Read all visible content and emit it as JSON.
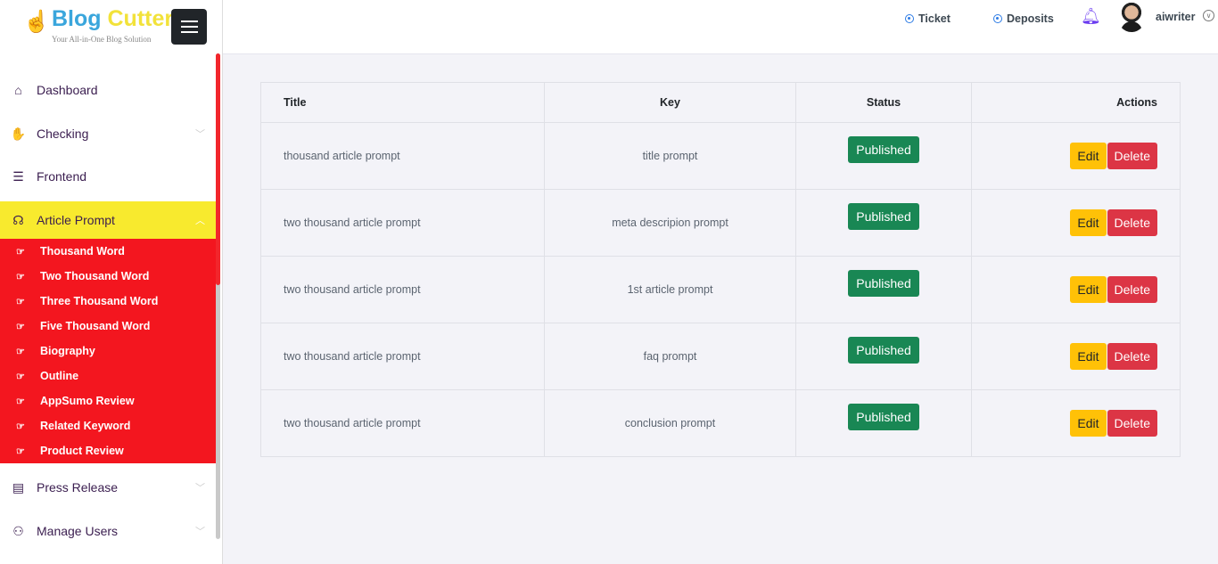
{
  "brand": {
    "name_blue": "Blog",
    "name_yellow": "Cutter",
    "tagline": "Your All-in-One Blog Solution"
  },
  "sidebar": {
    "items": [
      {
        "label": "Dashboard",
        "icon": "home-icon"
      },
      {
        "label": "Checking",
        "icon": "hand-icon",
        "has_children": true
      },
      {
        "label": "Frontend",
        "icon": "frontend-icon"
      },
      {
        "label": "Article Prompt",
        "icon": "article-icon",
        "active": true,
        "expanded": true
      },
      {
        "label": "Press Release",
        "icon": "newspaper-icon",
        "has_children": true
      },
      {
        "label": "Manage Users",
        "icon": "users-icon",
        "has_children": true
      }
    ],
    "subitems": [
      "Thousand Word",
      "Two Thousand Word",
      "Three Thousand Word",
      "Five Thousand Word",
      "Biography",
      "Outline",
      "AppSumo Review",
      "Related Keyword",
      "Product Review"
    ]
  },
  "header": {
    "ticket": "Ticket",
    "deposits": "Deposits",
    "username": "aiwriter"
  },
  "table": {
    "headers": [
      "Title",
      "Key",
      "Status",
      "Actions"
    ],
    "rows": [
      {
        "title": "thousand article prompt",
        "key": "title prompt",
        "status": "Published"
      },
      {
        "title": "two thousand article prompt",
        "key": "meta descripion prompt",
        "status": "Published"
      },
      {
        "title": "two thousand article prompt",
        "key": "1st article prompt",
        "status": "Published"
      },
      {
        "title": "two thousand article prompt",
        "key": "faq prompt",
        "status": "Published"
      },
      {
        "title": "two thousand article prompt",
        "key": "conclusion prompt",
        "status": "Published"
      }
    ],
    "edit_label": "Edit",
    "delete_label": "Delete"
  },
  "colors": {
    "active_bg": "#f8ea2e",
    "submenu_bg": "#f3161f",
    "published": "#198754",
    "edit": "#ffc107",
    "delete": "#dc3545"
  }
}
